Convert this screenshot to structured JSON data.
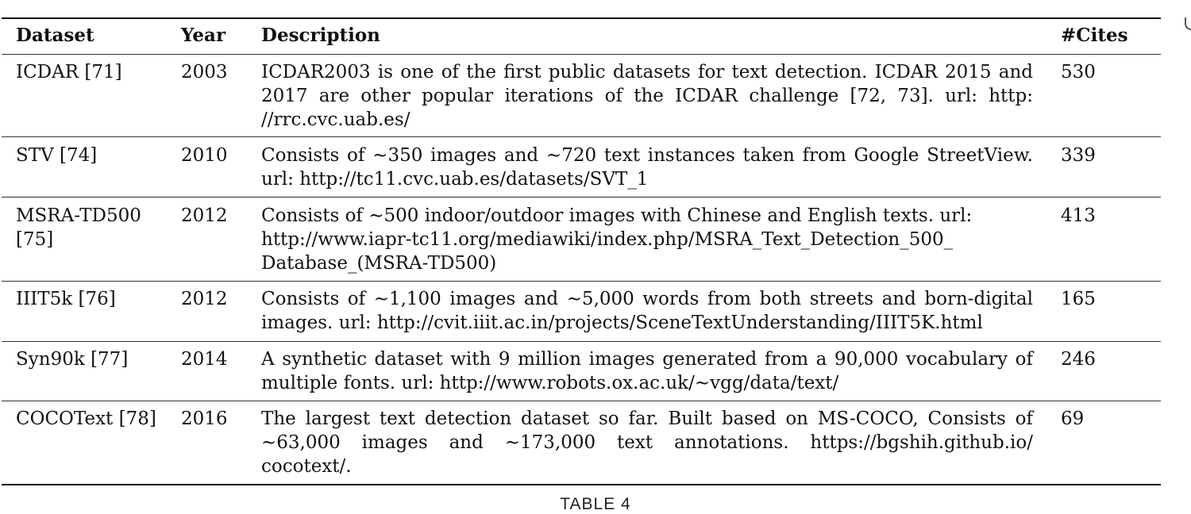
{
  "table": {
    "headers": {
      "dataset": "Dataset",
      "year": "Year",
      "description": "Description",
      "cites": "#Cites"
    },
    "rows": [
      {
        "dataset": "ICDAR [71]",
        "year": "2003",
        "description": "ICDAR2003 is one of the first public datasets for text detection. ICDAR 2015 and 2017 are other popular iterations of the ICDAR challenge [72, 73]. url: http: //rrc.cvc.uab.es/",
        "cites": "530"
      },
      {
        "dataset": "STV [74]",
        "year": "2010",
        "description": "Consists of ∼350 images and ∼720 text instances taken from Google StreetView. url: http://tc11.cvc.uab.es/datasets/SVT_1",
        "cites": "339"
      },
      {
        "dataset": "MSRA-TD500 [75]",
        "year": "2012",
        "description": "Consists of ∼500 indoor/outdoor images with Chinese and English texts. url: http://www.iapr-tc11.org/mediawiki/index.php/MSRA_Text_Detection_500_ Database_(MSRA-TD500)",
        "cites": "413"
      },
      {
        "dataset": "IIIT5k [76]",
        "year": "2012",
        "description": "Consists of ∼1,100 images and ∼5,000 words from both streets and born-digital images. url: http://cvit.iiit.ac.in/projects/SceneTextUnderstanding/IIIT5K.html",
        "cites": "165"
      },
      {
        "dataset": "Syn90k [77]",
        "year": "2014",
        "description": "A synthetic dataset with 9 million images generated from a 90,000 vocabulary of multiple fonts. url: http://www.robots.ox.ac.uk/∼vgg/data/text/",
        "cites": "246"
      },
      {
        "dataset": "COCOText [78]",
        "year": "2016",
        "description": "The largest text detection dataset so far. Built based on MS-COCO, Consists of ∼63,000 images and ∼173,000 text annotations. https://bgshih.github.io/ cocotext/.",
        "cites": "69"
      }
    ]
  },
  "caption": "TABLE 4"
}
